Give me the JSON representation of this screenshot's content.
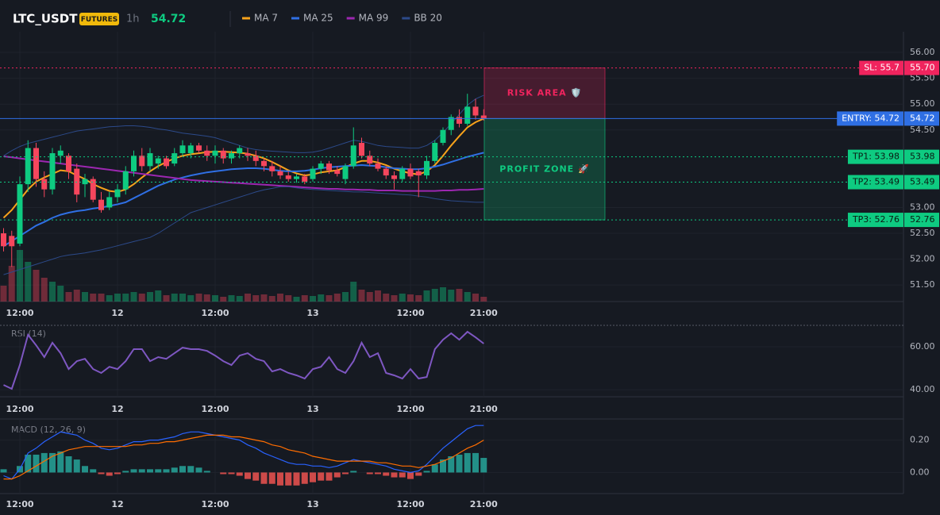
{
  "header": {
    "symbol": "LTC_USDT",
    "badge": "FUTURES",
    "interval": "1h",
    "price": 54.72
  },
  "chart_data": [
    {
      "type": "candlestick",
      "categories": [
        null,
        null,
        "12:00",
        null,
        null,
        null,
        null,
        null,
        null,
        null,
        null,
        null,
        null,
        null,
        "12",
        null,
        null,
        null,
        null,
        null,
        null,
        null,
        null,
        null,
        null,
        null,
        "12:00",
        null,
        null,
        null,
        null,
        null,
        null,
        null,
        null,
        null,
        null,
        null,
        "13",
        null,
        null,
        null,
        null,
        null,
        null,
        null,
        null,
        null,
        null,
        null,
        "12:00",
        null,
        null,
        null,
        null,
        null,
        null,
        null,
        null,
        "21:00"
      ],
      "open": [
        52.5,
        52.45,
        52.3,
        53.45,
        54.15,
        53.55,
        53.35,
        54.0,
        54.0,
        53.75,
        53.45,
        53.55,
        53.15,
        53.0,
        53.2,
        53.35,
        53.7,
        54.0,
        53.8,
        53.85,
        53.95,
        53.85,
        54.05,
        54.05,
        54.2,
        54.1,
        54.0,
        54.1,
        53.95,
        54.05,
        54.05,
        54.0,
        53.9,
        53.8,
        53.7,
        53.62,
        53.55,
        53.6,
        53.55,
        53.75,
        53.85,
        53.72,
        53.55,
        53.8,
        54.25,
        54.0,
        53.85,
        53.75,
        53.62,
        53.55,
        53.75,
        53.7,
        53.62,
        53.9,
        54.25,
        54.5,
        54.75,
        54.62,
        54.95,
        54.78
      ],
      "high": [
        52.6,
        52.55,
        53.6,
        54.3,
        54.25,
        53.7,
        54.15,
        54.2,
        54.05,
        53.85,
        53.65,
        53.6,
        53.3,
        53.3,
        53.45,
        53.8,
        54.1,
        54.15,
        54.15,
        54.0,
        54.0,
        54.15,
        54.3,
        54.25,
        54.25,
        54.2,
        54.2,
        54.15,
        54.1,
        54.2,
        54.15,
        54.1,
        53.95,
        53.9,
        53.8,
        53.7,
        53.65,
        53.65,
        53.8,
        53.9,
        53.9,
        53.8,
        53.85,
        54.55,
        54.35,
        54.1,
        53.95,
        53.8,
        53.7,
        53.8,
        53.85,
        53.75,
        54.0,
        54.3,
        54.55,
        54.8,
        54.9,
        55.2,
        55.1,
        54.9
      ],
      "low": [
        52.15,
        51.85,
        52.25,
        53.3,
        53.4,
        53.2,
        53.25,
        53.85,
        53.55,
        53.1,
        53.2,
        53.1,
        52.9,
        52.95,
        53.1,
        53.25,
        53.6,
        53.7,
        53.7,
        53.75,
        53.75,
        53.8,
        54.0,
        53.95,
        54.05,
        53.9,
        53.85,
        53.85,
        53.85,
        53.95,
        53.9,
        53.8,
        53.7,
        53.6,
        53.55,
        53.5,
        53.48,
        53.45,
        53.5,
        53.65,
        53.65,
        53.6,
        53.45,
        53.75,
        53.95,
        53.8,
        53.7,
        53.55,
        53.35,
        53.5,
        53.55,
        53.2,
        53.55,
        53.85,
        54.2,
        54.4,
        54.55,
        54.58,
        54.7,
        54.68
      ],
      "close": [
        52.25,
        52.25,
        53.45,
        54.15,
        53.55,
        53.35,
        54.05,
        54.1,
        53.7,
        53.25,
        53.55,
        53.15,
        52.95,
        53.2,
        53.35,
        53.7,
        54.0,
        53.8,
        54.05,
        53.95,
        53.8,
        54.05,
        54.2,
        54.2,
        54.1,
        54.0,
        54.1,
        53.95,
        54.05,
        54.15,
        54.0,
        53.9,
        53.8,
        53.7,
        53.62,
        53.55,
        53.6,
        53.5,
        53.75,
        53.85,
        53.72,
        53.65,
        53.8,
        54.2,
        54.0,
        53.85,
        53.75,
        53.62,
        53.55,
        53.75,
        53.6,
        53.62,
        53.9,
        54.25,
        54.5,
        54.75,
        54.62,
        54.95,
        54.78,
        54.72
      ],
      "volume": [
        20,
        45,
        65,
        50,
        40,
        30,
        25,
        20,
        12,
        15,
        12,
        10,
        10,
        8,
        10,
        10,
        12,
        10,
        12,
        14,
        8,
        10,
        10,
        8,
        10,
        9,
        8,
        6,
        8,
        7,
        10,
        8,
        9,
        7,
        10,
        8,
        6,
        8,
        7,
        9,
        8,
        10,
        12,
        25,
        15,
        12,
        14,
        10,
        8,
        10,
        9,
        8,
        14,
        16,
        18,
        15,
        16,
        12,
        10,
        6
      ],
      "volume_lim": [
        0,
        100
      ],
      "up_color": "#0ecb81",
      "down_color": "#f6465d",
      "ylim": [
        51.18,
        56.4
      ],
      "yticks": [
        {
          "value": 56,
          "label": "56.00"
        },
        {
          "value": 55.5,
          "label": "55.50"
        },
        {
          "value": 55,
          "label": "55.00"
        },
        {
          "value": 54.5,
          "label": "54.50"
        },
        {
          "value": 53,
          "label": "53.00"
        },
        {
          "value": 52.5,
          "label": "52.50"
        },
        {
          "value": 52,
          "label": "52.00"
        },
        {
          "value": 51.5,
          "label": "51.50"
        }
      ],
      "series": [
        {
          "name": "MA 7",
          "color": "#f7a21b",
          "values": [
            52.8,
            52.95,
            53.15,
            53.35,
            53.5,
            53.58,
            53.65,
            53.72,
            53.7,
            53.62,
            53.55,
            53.45,
            53.38,
            53.32,
            53.3,
            53.35,
            53.45,
            53.58,
            53.7,
            53.8,
            53.88,
            53.95,
            54.0,
            54.03,
            54.05,
            54.07,
            54.08,
            54.08,
            54.07,
            54.06,
            54.04,
            54.0,
            53.95,
            53.88,
            53.8,
            53.72,
            53.66,
            53.62,
            53.64,
            53.68,
            53.7,
            53.72,
            53.78,
            53.85,
            53.9,
            53.9,
            53.87,
            53.82,
            53.75,
            53.7,
            53.66,
            53.64,
            53.7,
            53.82,
            54.0,
            54.2,
            54.38,
            54.55,
            54.65,
            54.72
          ]
        },
        {
          "name": "MA 25",
          "color": "#2f6fe4",
          "values": [
            52.25,
            52.35,
            52.45,
            52.55,
            52.65,
            52.72,
            52.8,
            52.86,
            52.9,
            52.93,
            52.95,
            52.98,
            53.0,
            53.03,
            53.06,
            53.1,
            53.18,
            53.26,
            53.34,
            53.42,
            53.48,
            53.54,
            53.58,
            53.62,
            53.65,
            53.68,
            53.7,
            53.72,
            53.74,
            53.75,
            53.76,
            53.76,
            53.75,
            53.73,
            53.71,
            53.7,
            53.7,
            53.71,
            53.73,
            53.76,
            53.78,
            53.79,
            53.8,
            53.81,
            53.82,
            53.81,
            53.8,
            53.78,
            53.76,
            53.75,
            53.74,
            53.74,
            53.76,
            53.79,
            53.83,
            53.88,
            53.93,
            53.98,
            54.02,
            54.06
          ]
        },
        {
          "name": "MA 99",
          "color": "#9c27b0",
          "values": [
            53.99,
            53.97,
            53.95,
            53.93,
            53.91,
            53.89,
            53.87,
            53.85,
            53.83,
            53.81,
            53.79,
            53.77,
            53.75,
            53.73,
            53.71,
            53.69,
            53.67,
            53.65,
            53.63,
            53.61,
            53.59,
            53.57,
            53.55,
            53.53,
            53.52,
            53.51,
            53.5,
            53.49,
            53.48,
            53.47,
            53.46,
            53.45,
            53.44,
            53.43,
            53.42,
            53.41,
            53.4,
            53.39,
            53.38,
            53.37,
            53.36,
            53.36,
            53.35,
            53.35,
            53.34,
            53.34,
            53.33,
            53.33,
            53.33,
            53.32,
            53.32,
            53.32,
            53.32,
            53.32,
            53.33,
            53.33,
            53.34,
            53.34,
            53.35,
            53.36
          ]
        },
        {
          "name": "BB 20",
          "color": "#2c4a8a",
          "upper": [
            54.0,
            54.1,
            54.18,
            54.24,
            54.28,
            54.32,
            54.36,
            54.4,
            54.44,
            54.48,
            54.5,
            54.52,
            54.54,
            54.56,
            54.57,
            54.58,
            54.58,
            54.57,
            54.55,
            54.52,
            54.5,
            54.47,
            54.44,
            54.42,
            54.4,
            54.38,
            54.35,
            54.3,
            54.25,
            54.2,
            54.15,
            54.12,
            54.1,
            54.09,
            54.08,
            54.07,
            54.06,
            54.06,
            54.07,
            54.1,
            54.15,
            54.2,
            54.25,
            54.3,
            54.28,
            54.24,
            54.2,
            54.18,
            54.17,
            54.16,
            54.15,
            54.15,
            54.2,
            54.3,
            54.45,
            54.62,
            54.8,
            54.98,
            55.1,
            55.17
          ],
          "lower": [
            51.7,
            51.75,
            51.8,
            51.85,
            51.9,
            51.95,
            52.0,
            52.05,
            52.08,
            52.1,
            52.12,
            52.15,
            52.18,
            52.22,
            52.26,
            52.3,
            52.34,
            52.38,
            52.42,
            52.5,
            52.6,
            52.7,
            52.8,
            52.9,
            52.95,
            53.0,
            53.05,
            53.1,
            53.15,
            53.2,
            53.25,
            53.3,
            53.34,
            53.37,
            53.4,
            53.4,
            53.38,
            53.36,
            53.35,
            53.34,
            53.33,
            53.32,
            53.31,
            53.3,
            53.3,
            53.29,
            53.28,
            53.27,
            53.26,
            53.25,
            53.24,
            53.22,
            53.2,
            53.17,
            53.15,
            53.13,
            53.12,
            53.11,
            53.1,
            53.1
          ]
        }
      ],
      "levels": [
        {
          "label": "SL: 55.7",
          "value": 55.7,
          "value_label": "55.70",
          "color": "#f0245e",
          "line": "dotted"
        },
        {
          "label": "ENTRY: 54.72",
          "value": 54.72,
          "value_label": "54.72",
          "color": "#2f6fe4",
          "line": "solid"
        },
        {
          "label": "TP1: 53.98",
          "value": 53.98,
          "value_label": "53.98",
          "color": "#0ecb81",
          "line": "dotted"
        },
        {
          "label": "TP2: 53.49",
          "value": 53.49,
          "value_label": "53.49",
          "color": "#0ecb81",
          "line": "dotted"
        },
        {
          "label": "TP3: 52.76",
          "value": 52.76,
          "value_label": "52.76",
          "color": "#0ecb81",
          "line": "dotted"
        }
      ],
      "zones": [
        {
          "label": "RISK AREA 🛡️",
          "from": 55.7,
          "to": 54.72,
          "color": "#f0245e"
        },
        {
          "label": "PROFIT ZONE 🚀",
          "from": 54.72,
          "to": 52.76,
          "color": "#0ecb81"
        }
      ]
    },
    {
      "type": "line",
      "title": "RSI (14)",
      "color": "#7e57c2",
      "values": [
        42.2,
        40.4,
        51.5,
        65.6,
        60.7,
        55.2,
        61.9,
        57.0,
        49.6,
        53.3,
        54.4,
        49.6,
        47.8,
        50.7,
        49.6,
        53.3,
        58.9,
        58.9,
        53.3,
        55.2,
        54.4,
        57.0,
        59.6,
        58.9,
        58.9,
        58.1,
        55.9,
        53.3,
        51.5,
        55.9,
        57.0,
        54.4,
        53.3,
        48.5,
        49.6,
        47.8,
        46.7,
        45.2,
        49.6,
        50.7,
        55.2,
        49.6,
        47.8,
        53.3,
        61.9,
        55.2,
        57.0,
        47.8,
        46.7,
        45.2,
        49.6,
        45.2,
        45.9,
        58.9,
        63.3,
        66.3,
        63.3,
        67.0,
        64.4,
        61.5
      ],
      "ylim": [
        36.7,
        70
      ],
      "yticks": [
        {
          "value": 60,
          "label": "60.00"
        },
        {
          "value": 40,
          "label": "40.00"
        }
      ]
    },
    {
      "type": "macd",
      "title": "MACD (12, 26, 9)",
      "series": [
        {
          "color": "#2962ff",
          "values": [
            -0.02,
            -0.04,
            0.02,
            0.12,
            0.15,
            0.19,
            0.22,
            0.25,
            0.24,
            0.23,
            0.2,
            0.18,
            0.15,
            0.14,
            0.15,
            0.17,
            0.19,
            0.19,
            0.2,
            0.2,
            0.21,
            0.22,
            0.24,
            0.25,
            0.25,
            0.24,
            0.23,
            0.22,
            0.21,
            0.2,
            0.17,
            0.15,
            0.12,
            0.1,
            0.08,
            0.06,
            0.05,
            0.05,
            0.04,
            0.04,
            0.03,
            0.04,
            0.06,
            0.08,
            0.07,
            0.06,
            0.05,
            0.04,
            0.02,
            0.01,
            0.0,
            0.01,
            0.05,
            0.1,
            0.15,
            0.19,
            0.23,
            0.27,
            0.29,
            0.29
          ]
        },
        {
          "color": "#ff6d00",
          "values": [
            -0.04,
            -0.04,
            -0.02,
            0.01,
            0.04,
            0.07,
            0.1,
            0.12,
            0.14,
            0.15,
            0.16,
            0.16,
            0.16,
            0.16,
            0.16,
            0.16,
            0.17,
            0.17,
            0.18,
            0.18,
            0.19,
            0.19,
            0.2,
            0.21,
            0.22,
            0.23,
            0.23,
            0.23,
            0.22,
            0.22,
            0.21,
            0.2,
            0.19,
            0.17,
            0.16,
            0.14,
            0.13,
            0.12,
            0.1,
            0.09,
            0.08,
            0.07,
            0.07,
            0.07,
            0.07,
            0.07,
            0.06,
            0.06,
            0.05,
            0.04,
            0.04,
            0.03,
            0.04,
            0.05,
            0.07,
            0.09,
            0.12,
            0.15,
            0.17,
            0.2
          ]
        }
      ],
      "histogram": {
        "up_color": "#26a69a",
        "down_color": "#ef5350",
        "values": [
          0.02,
          0.0,
          0.04,
          0.11,
          0.11,
          0.12,
          0.12,
          0.13,
          0.1,
          0.08,
          0.04,
          0.02,
          -0.01,
          -0.02,
          -0.01,
          0.01,
          0.02,
          0.02,
          0.02,
          0.02,
          0.02,
          0.03,
          0.04,
          0.04,
          0.03,
          0.01,
          0.0,
          -0.01,
          -0.01,
          -0.02,
          -0.04,
          -0.05,
          -0.07,
          -0.07,
          -0.08,
          -0.08,
          -0.08,
          -0.07,
          -0.06,
          -0.05,
          -0.05,
          -0.03,
          -0.01,
          0.01,
          0.0,
          -0.01,
          -0.01,
          -0.02,
          -0.03,
          -0.03,
          -0.04,
          -0.02,
          0.01,
          0.05,
          0.08,
          0.1,
          0.11,
          0.12,
          0.12,
          0.09
        ]
      },
      "ylim": [
        -0.13,
        0.33
      ],
      "yticks": [
        {
          "value": 0.2,
          "label": "0.20"
        },
        {
          "value": 0,
          "label": "0.00"
        }
      ]
    }
  ]
}
